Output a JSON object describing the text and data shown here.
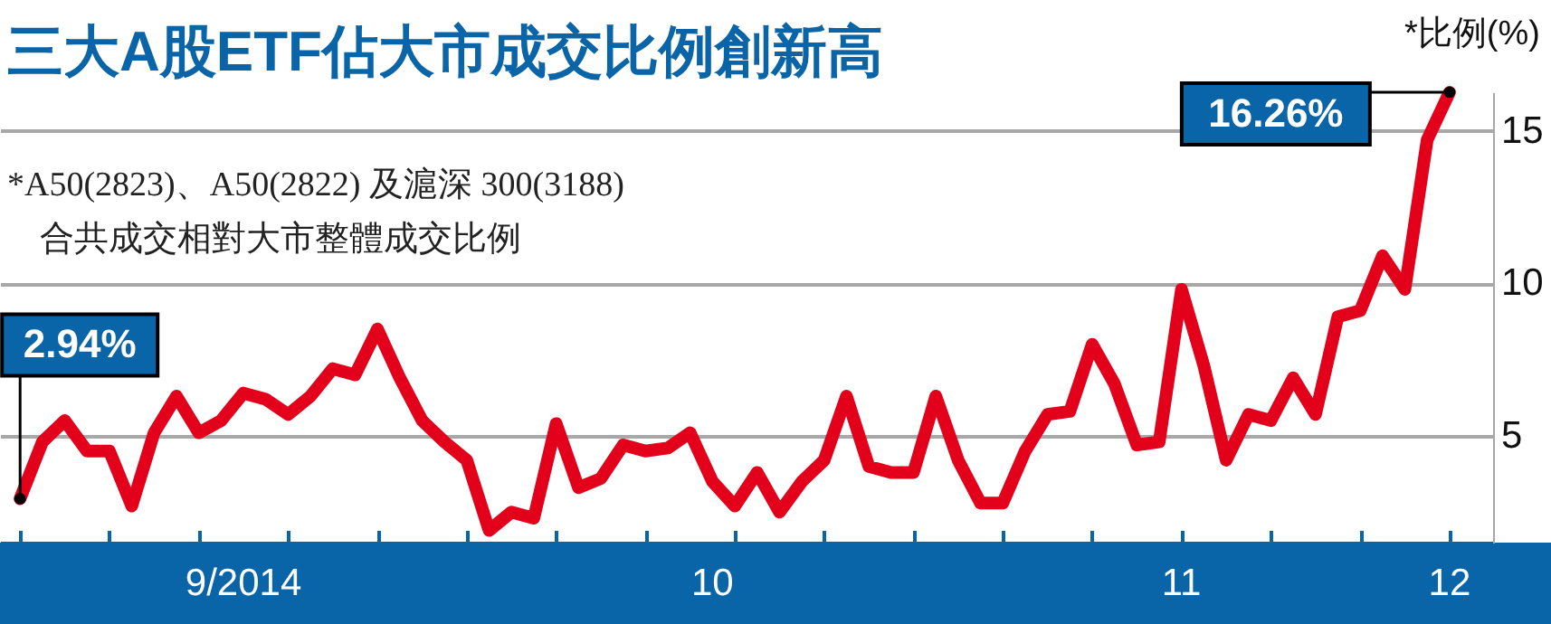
{
  "chart_data": {
    "type": "line",
    "title": "三大A股ETF佔大市成交比例創新高",
    "ylabel": "*比例(%)",
    "annotations": [
      "*A50(2823)、A50(2822) 及滬深 300(3188)",
      "合共成交相對大市整體成交比例"
    ],
    "categories": [
      null,
      null,
      null,
      null,
      null,
      null,
      null,
      null,
      null,
      null,
      "9/2014",
      null,
      null,
      null,
      null,
      null,
      null,
      null,
      null,
      null,
      null,
      null,
      null,
      null,
      null,
      null,
      null,
      null,
      null,
      null,
      null,
      "10",
      null,
      null,
      null,
      null,
      null,
      null,
      null,
      null,
      null,
      null,
      null,
      null,
      null,
      null,
      null,
      null,
      null,
      null,
      null,
      null,
      "11",
      null,
      null,
      null,
      null,
      null,
      null,
      null,
      null,
      null,
      null,
      null,
      "12"
    ],
    "series": [
      {
        "color": "#e2001a",
        "values": [
          2.94,
          4.8,
          5.5,
          4.5,
          4.5,
          2.7,
          5.1,
          6.3,
          5.1,
          5.5,
          6.4,
          6.2,
          5.7,
          6.3,
          7.2,
          7.0,
          8.5,
          6.9,
          5.5,
          4.8,
          4.2,
          1.9,
          2.5,
          2.3,
          5.4,
          3.3,
          3.6,
          4.7,
          4.5,
          4.6,
          5.1,
          3.5,
          2.7,
          3.8,
          2.5,
          3.5,
          4.2,
          6.3,
          4.0,
          3.8,
          3.8,
          6.3,
          4.2,
          2.8,
          2.8,
          4.5,
          5.7,
          5.8,
          8.0,
          6.7,
          4.7,
          4.8,
          9.8,
          7.3,
          4.2,
          5.7,
          5.5,
          6.9,
          5.7,
          8.9,
          9.1,
          10.9,
          9.8,
          14.7,
          16.26
        ],
        "value_labels": [
          "2.94%",
          null,
          null,
          null,
          null,
          null,
          null,
          null,
          null,
          null,
          null,
          null,
          null,
          null,
          null,
          null,
          null,
          null,
          null,
          null,
          null,
          null,
          null,
          null,
          null,
          null,
          null,
          null,
          null,
          null,
          null,
          null,
          null,
          null,
          null,
          null,
          null,
          null,
          null,
          null,
          null,
          null,
          null,
          null,
          null,
          null,
          null,
          null,
          null,
          null,
          null,
          null,
          null,
          null,
          null,
          null,
          null,
          null,
          null,
          null,
          null,
          null,
          null,
          null,
          "16.26%"
        ]
      }
    ],
    "ylim": [
      1.5,
      16.26
    ],
    "yticks": [
      5,
      10,
      15
    ],
    "grid": "y",
    "marker": "none",
    "line_style": "solid"
  }
}
